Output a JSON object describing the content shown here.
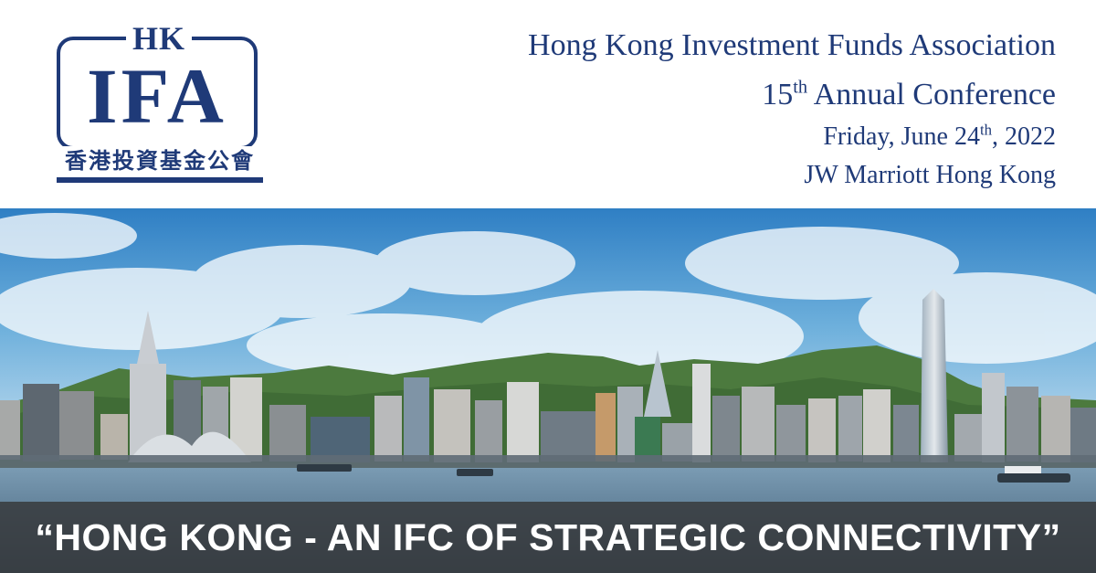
{
  "logo": {
    "abbr_top": "HK",
    "abbr_main": "IFA",
    "chinese_name": "香港投資基金公會",
    "brand_color": "#1f3a78"
  },
  "event": {
    "organization": "Hong Kong Investment Funds Association",
    "ordinal_number": "15",
    "ordinal_suffix": "th",
    "conference_name": "Annual Conference",
    "date_prefix": "Friday, June 24",
    "date_suffix": "th",
    "date_year": ", 2022",
    "venue": "JW Marriott Hong Kong"
  },
  "hero": {
    "scene": "hong-kong-skyline-victoria-harbour"
  },
  "banner": {
    "text": "“HONG KONG - AN IFC OF STRATEGIC CONNECTIVITY”",
    "background_color": "#37393b"
  }
}
